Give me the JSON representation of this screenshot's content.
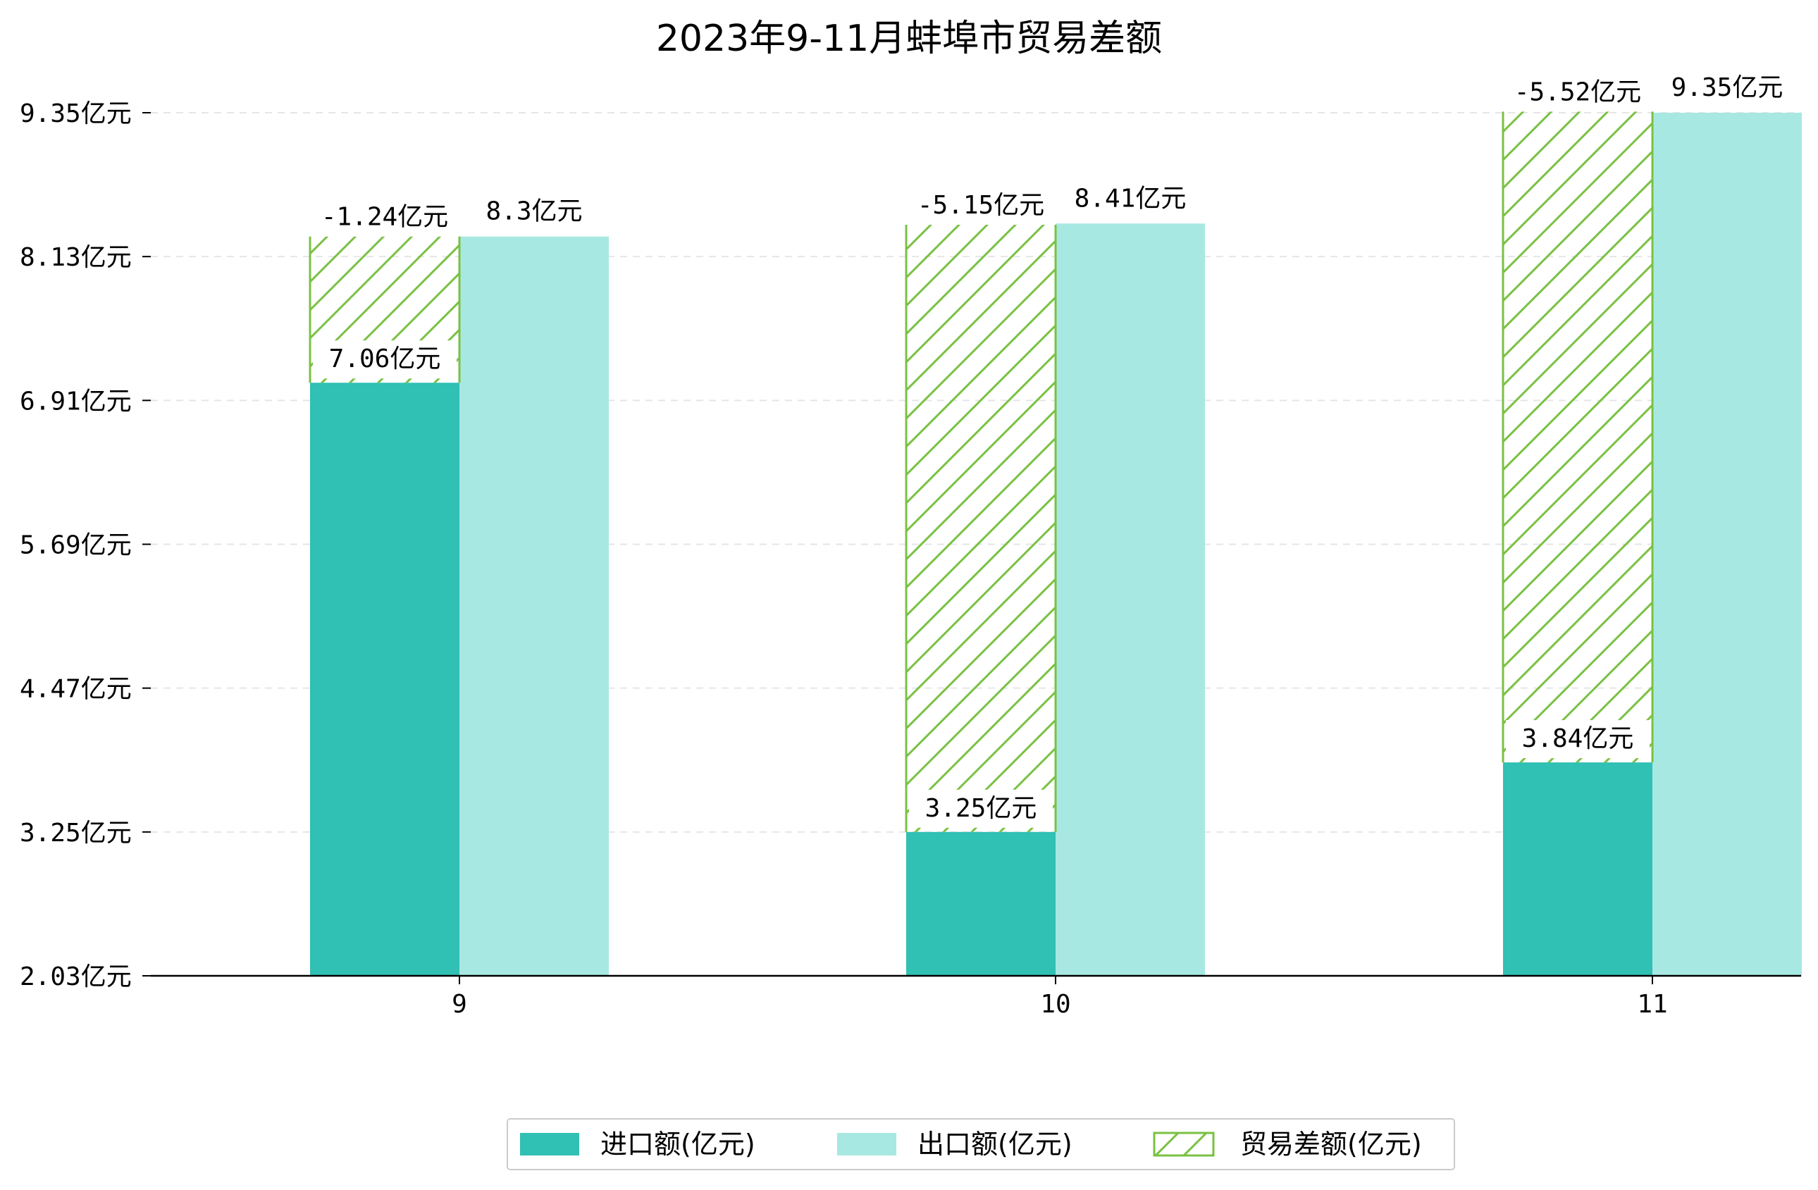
{
  "chart_data": {
    "type": "bar",
    "title": "2023年9-11月蚌埠市贸易差额",
    "categories": [
      "9",
      "10",
      "11"
    ],
    "unit_suffix": "亿元",
    "yticks": [
      "9.35亿元",
      "8.13亿元",
      "6.91亿元",
      "5.69亿元",
      "4.47亿元",
      "3.25亿元",
      "2.03亿元"
    ],
    "ytick_values": [
      9.35,
      8.13,
      6.91,
      5.69,
      4.47,
      3.25,
      2.03
    ],
    "ylim": [
      2.03,
      9.35
    ],
    "grid": "horizontal-dashed",
    "legend_position": "bottom",
    "series": [
      {
        "name": "进口额(亿元)",
        "values": [
          7.06,
          3.25,
          3.84
        ],
        "labels": [
          "7.06亿元",
          "3.25亿元",
          "3.84亿元"
        ],
        "color": "#30C0B4"
      },
      {
        "name": "出口额(亿元)",
        "values": [
          8.3,
          8.41,
          9.35
        ],
        "labels": [
          "8.3亿元",
          "8.41亿元",
          "9.35亿元"
        ],
        "color": "#A8E8E2"
      },
      {
        "name": "贸易差额(亿元)",
        "values": [
          -1.24,
          -5.15,
          -5.52
        ],
        "labels": [
          "-1.24亿元",
          "-5.15亿元",
          "-5.52亿元"
        ],
        "color": "#7AC143",
        "style": "hatched"
      }
    ]
  }
}
